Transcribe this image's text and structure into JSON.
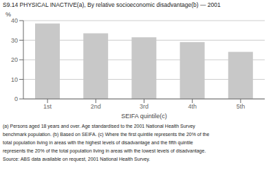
{
  "chart_data": {
    "type": "bar",
    "title": "S9.14   PHYSICAL INACTIVE(a), By relative socioeconomic disadvantage(b) — 2001",
    "xlabel": "SEIFA quintile(c)",
    "ylabel": "%",
    "categories": [
      "1st",
      "2nd",
      "3rd",
      "4th",
      "5th"
    ],
    "values": [
      38.5,
      33.5,
      31.5,
      29.0,
      24.0
    ],
    "color": "#C8C8C8",
    "ylim": [
      0,
      40
    ],
    "yticks": [
      0,
      10,
      20,
      30,
      40
    ],
    "grid": true,
    "annotations": [
      "(a) Persons aged 18 years and over. Age standardised to the 2001 National Health Survey",
      "benchmark population.  (b) Based on SEIFA.  (c) Where the first quintile represents the 20% of the",
      "total population living in areas with the highest levels of disadvantage and the fifth quintile",
      "represents the 20% of the total population living in areas with the lowest levels of disadvantage.",
      "Source: ABS data available on request, 2001 National Health Survey."
    ]
  }
}
